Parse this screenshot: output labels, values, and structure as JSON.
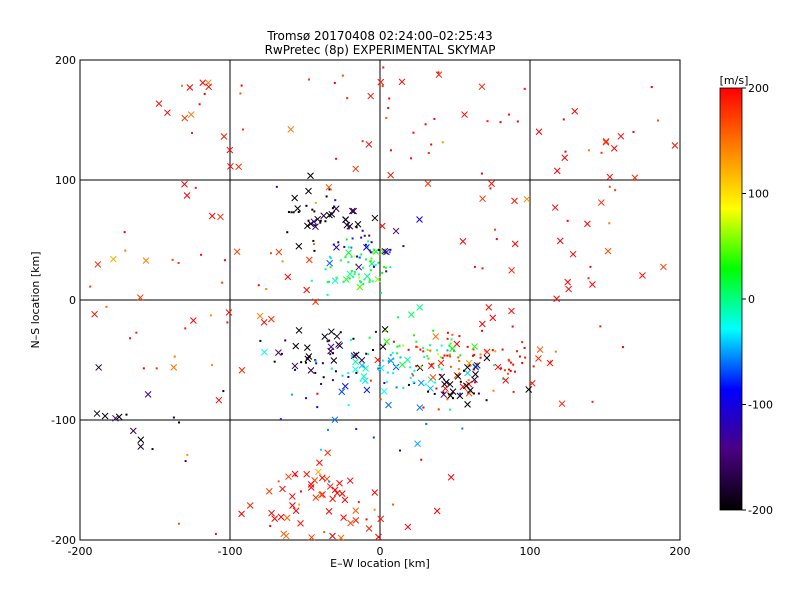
{
  "chart_data": {
    "type": "scatter",
    "title": "Tromsø 20170408 02:24:00–02:25:43",
    "subtitle": "RwPretec (8p) EXPERIMENTAL SKYMAP",
    "xlabel": "E–W location [km]",
    "ylabel": "N–S location [km]",
    "xlim": [
      -200,
      200
    ],
    "ylim": [
      -200,
      200
    ],
    "xticks": [
      "-200",
      "-100",
      "0",
      "100",
      "200"
    ],
    "yticks": [
      "-200",
      "-100",
      "0",
      "100",
      "200"
    ],
    "grid": true,
    "marker_types": [
      "cross",
      "dot"
    ],
    "colorbar": {
      "label": "[m/s]",
      "range": [
        -200,
        200
      ],
      "ticks": [
        "-200",
        "-100",
        "0",
        "100",
        "200"
      ],
      "colormap": [
        "#000000",
        "#4b0082",
        "#0000ff",
        "#00ffff",
        "#00ff00",
        "#ffff00",
        "#ff8000",
        "#ff0000"
      ]
    },
    "clusters": [
      {
        "x": -30,
        "y": -42,
        "sx": 22,
        "sy": 12,
        "v": -185,
        "n": 45,
        "cross": 0.5
      },
      {
        "x": 10,
        "y": -55,
        "sx": 25,
        "sy": 10,
        "v": -30,
        "n": 60,
        "cross": 0.3
      },
      {
        "x": 60,
        "y": -55,
        "sx": 30,
        "sy": 15,
        "v": 190,
        "n": 90,
        "cross": 0.3
      },
      {
        "x": 50,
        "y": -70,
        "sx": 15,
        "sy": 12,
        "v": -190,
        "n": 30,
        "cross": 0.6
      },
      {
        "x": -15,
        "y": 25,
        "sx": 12,
        "sy": 10,
        "v": 10,
        "n": 60,
        "cross": 0.2
      },
      {
        "x": -45,
        "y": 70,
        "sx": 20,
        "sy": 12,
        "v": -190,
        "n": 45,
        "cross": 0.5
      },
      {
        "x": -10,
        "y": 45,
        "sx": 15,
        "sy": 15,
        "v": -110,
        "n": 30,
        "cross": 0.2
      },
      {
        "x": -35,
        "y": -170,
        "sx": 35,
        "sy": 20,
        "v": 195,
        "n": 70,
        "cross": 0.7
      },
      {
        "x": -120,
        "y": 140,
        "sx": 15,
        "sy": 35,
        "v": 195,
        "n": 25,
        "cross": 0.7
      },
      {
        "x": -120,
        "y": 0,
        "sx": 55,
        "sy": 40,
        "v": 180,
        "n": 50,
        "cross": 0.5
      },
      {
        "x": 120,
        "y": 40,
        "sx": 50,
        "sy": 60,
        "v": 195,
        "n": 45,
        "cross": 0.4
      },
      {
        "x": -170,
        "y": -100,
        "sx": 25,
        "sy": 20,
        "v": -190,
        "n": 20,
        "cross": 0.5
      },
      {
        "x": 10,
        "y": 150,
        "sx": 50,
        "sy": 40,
        "v": 190,
        "n": 40,
        "cross": 0.3
      },
      {
        "x": -5,
        "y": -95,
        "sx": 35,
        "sy": 15,
        "v": -60,
        "n": 25,
        "cross": 0.3
      },
      {
        "x": 30,
        "y": -35,
        "sx": 15,
        "sy": 12,
        "v": 30,
        "n": 25,
        "cross": 0.2
      },
      {
        "x": 160,
        "y": 100,
        "sx": 30,
        "sy": 60,
        "v": 195,
        "n": 20,
        "cross": 0.5
      }
    ]
  }
}
